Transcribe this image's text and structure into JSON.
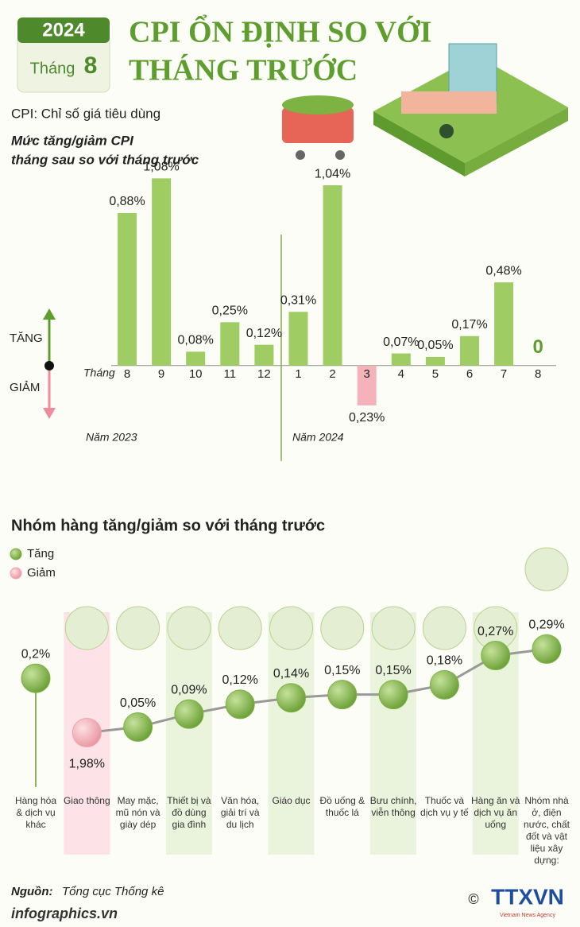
{
  "badge": {
    "year": "2024",
    "month_label": "Tháng",
    "month": "8"
  },
  "title": [
    "CPI ỔN ĐỊNH SO VỚI",
    "THÁNG TRƯỚC"
  ],
  "note": "CPI: Chỉ số giá tiêu dùng",
  "chart_data": [
    {
      "type": "bar",
      "title": [
        "Mức tăng/giảm CPI",
        "tháng sau so với tháng trước"
      ],
      "x_label": "Tháng",
      "up_label": "TĂNG",
      "down_label": "GIẢM",
      "annotations": [
        "Năm 2023",
        "Năm 2024"
      ],
      "categories": [
        "8",
        "9",
        "10",
        "11",
        "12",
        "1",
        "2",
        "3",
        "4",
        "5",
        "6",
        "7",
        "8"
      ],
      "values": [
        0.88,
        1.08,
        0.08,
        0.25,
        0.12,
        0.31,
        1.04,
        -0.23,
        0.07,
        0.05,
        0.17,
        0.48,
        0
      ],
      "value_labels": [
        "0,88%",
        "1,08%",
        "0,08%",
        "0,25%",
        "0,12%",
        "0,31%",
        "1,04%",
        "0,23%",
        "0,07%",
        "0,05%",
        "0,17%",
        "0,48%",
        "0"
      ],
      "color": "#9fcd63",
      "negative_color": "#f4b3bb",
      "ylim": [
        -0.4,
        1.1
      ]
    },
    {
      "type": "dot",
      "title": "Nhóm hàng tăng/giảm so với tháng trước",
      "categories": [
        "Hàng hóa & dịch vụ khác",
        "Giao thông",
        "May mặc, mũ nón và giày dép",
        "Thiết bị và đồ dùng gia đình",
        "Văn hóa, giải trí và du lịch",
        "Giáo dục",
        "Đồ uống & thuốc lá",
        "Bưu chính, viễn thông",
        "Thuốc và dịch vụ y tế",
        "Hàng ăn và dịch vụ ăn uống",
        "Nhóm nhà ở, điện nước, chất đốt và vật liệu xây dựng:"
      ],
      "series": [
        {
          "name": "Tăng",
          "color": "#7cb342",
          "values": [
            0.2,
            null,
            0.05,
            0.09,
            0.12,
            0.14,
            0.15,
            0.15,
            0.18,
            0.27,
            0.29
          ],
          "value_labels": [
            "0,2%",
            null,
            "0,05%",
            "0,09%",
            "0,12%",
            "0,14%",
            "0,15%",
            "0,15%",
            "0,18%",
            "0,27%",
            "0,29%"
          ]
        },
        {
          "name": "Giảm",
          "color": "#f4a3ad",
          "axis": "y2",
          "values": [
            null,
            1.98,
            null,
            null,
            null,
            null,
            null,
            null,
            null,
            null,
            null
          ],
          "value_labels": [
            null,
            "1,98%",
            null,
            null,
            null,
            null,
            null,
            null,
            null,
            null,
            null
          ]
        }
      ],
      "ylim": [
        0,
        0.33
      ],
      "y2lim": [
        2.2,
        0
      ]
    }
  ],
  "footer": {
    "source_label": "Nguồn:",
    "source": "Tổng cục Thống kê",
    "site": "infographics.vn",
    "copyright": "©",
    "agency": "TTXVN",
    "agency_full": "Vietnam News Agency"
  }
}
